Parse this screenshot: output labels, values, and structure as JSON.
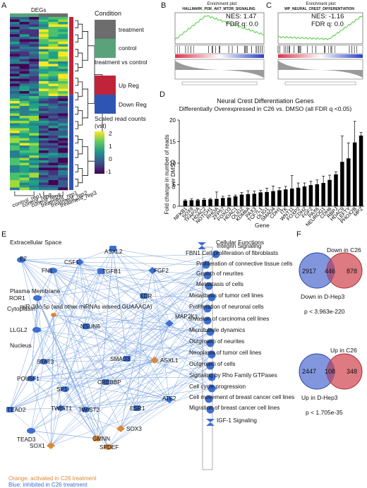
{
  "panels": {
    "A": "A",
    "B": "B",
    "C": "C",
    "D": "D",
    "E": "E",
    "F": "F"
  },
  "panelA": {
    "title": "DEGs",
    "legend": {
      "condition_title": "Condition",
      "treatment": "treatment",
      "control": "control",
      "tvc_title": "treatment vs control",
      "up": "Up Reg",
      "down": "Down Reg",
      "scale_title": "Scaled read counts (vst)",
      "ticks": [
        "2",
        "1",
        "0",
        "-1"
      ]
    },
    "samples": [
      "control_rep1",
      "control_rep2",
      "control_rep3",
      "treatment_rep1",
      "treatment_rep2",
      "treatment_rep3"
    ],
    "colors": {
      "treatment": "#6d6d6d",
      "control": "#5aa37a",
      "up": "#c0233a",
      "down": "#2f55b4"
    }
  },
  "panelB": {
    "title": "Enrichment plot:",
    "subtitle": "HALLMARK_PI3K_AKT_MTOR_SIGNALING",
    "nes": "NES: 1.47",
    "fdr": "FDR q: 0.0"
  },
  "panelC": {
    "title": "Enrichment plot:",
    "subtitle": "WP_NEURAL_CREST_DIFFERENTIATION",
    "nes": "NES: -1.16",
    "fdr": "FDR q: 0.0"
  },
  "chart_data": {
    "type": "bar",
    "title": "Neural Crest Differentiation Genes",
    "subtitle": "Differentially Overexpressed in C26 vs. DMSO (all FDR q <0.05)",
    "xlabel": "Gene",
    "ylabel": "Fold change in number of reads over DMSO",
    "ylim": [
      0,
      20
    ],
    "yticks": [
      0,
      5,
      10,
      15,
      20
    ],
    "categories": [
      "NFKB1",
      "SOX9",
      "TFAP2A",
      "HDAC2",
      "NOTCH1",
      "RHOA",
      "ZFP57",
      "FOXO3",
      "HDAC1",
      "OLIG2",
      "KDM6A",
      "PAX3",
      "TCF7L1",
      "OLIG1",
      "SMAD4",
      "CDH1",
      "ITK",
      "WNT11",
      "FOXP2",
      "CDH2",
      "FGF2",
      "PAX6",
      "NEUROG1",
      "CDH6",
      "RBPJ",
      "HDAC9",
      "LEFTY",
      "PHOX2B",
      "MPZ"
    ],
    "values": [
      1.3,
      1.4,
      1.4,
      1.5,
      1.6,
      1.7,
      1.9,
      2.0,
      2.3,
      2.7,
      2.8,
      2.9,
      3.2,
      3.3,
      3.5,
      3.7,
      3.9,
      4.1,
      4.3,
      4.6,
      4.9,
      5.1,
      5.4,
      6.1,
      7.4,
      10.3,
      11.1,
      14.8,
      16.4
    ],
    "errors": [
      0.2,
      0.3,
      0.2,
      0.3,
      0.2,
      1.6,
      0.4,
      0.5,
      0.3,
      0.5,
      0.8,
      0.6,
      0.5,
      0.9,
      1.2,
      0.6,
      0.7,
      3.0,
      1.1,
      0.8,
      0.9,
      1.0,
      1.6,
      1.1,
      0.6,
      6.0,
      3.6,
      4.9,
      0.7
    ]
  },
  "panelE": {
    "sections": {
      "extracellular": "Extracellular Space",
      "plasma": "Plasma Membrane",
      "cytoplasm": "Cytoplasm",
      "nucleus": "Nucleus",
      "functions": "Cellular Functions"
    },
    "genes": [
      {
        "id": "E2",
        "label": "E2",
        "type": "inh"
      },
      {
        "id": "ASXL2",
        "label": "ASXL2",
        "type": "inh"
      },
      {
        "id": "CSF1",
        "label": "CSF1",
        "type": "inh"
      },
      {
        "id": "FN1",
        "label": "FN1",
        "type": "inh"
      },
      {
        "id": "TGFB1",
        "label": "TGFB1",
        "type": "inh"
      },
      {
        "id": "FGF2",
        "label": "FGF2",
        "type": "inh"
      },
      {
        "id": "ROR1",
        "label": "ROR1",
        "type": "inh"
      },
      {
        "id": "KDR",
        "label": "KDR",
        "type": "inh"
      },
      {
        "id": "MIR30",
        "label": "miR-30c-5p (and other miRNAs w/seed GUAAACA)",
        "type": "act"
      },
      {
        "id": "LLGL2",
        "label": "LLGL2",
        "type": "inh"
      },
      {
        "id": "NSUN6",
        "label": "NSUN6",
        "type": "inh"
      },
      {
        "id": "MAP2K1",
        "label": "MAP2K1",
        "type": "inh"
      },
      {
        "id": "STAT3",
        "label": "STAT3",
        "type": "inh"
      },
      {
        "id": "SMAD3",
        "label": "SMAD3",
        "type": "inh"
      },
      {
        "id": "ASXL1",
        "label": "ASXL1",
        "type": "act"
      },
      {
        "id": "POU5F1",
        "label": "POU5F1",
        "type": "inh"
      },
      {
        "id": "CREBBP",
        "label": "CREBBP",
        "type": "inh"
      },
      {
        "id": "ATF2",
        "label": "ATF2",
        "type": "inh"
      },
      {
        "id": "SP1",
        "label": "SP1",
        "type": "inh"
      },
      {
        "id": "TEAD2",
        "label": "TEAD2",
        "type": "inh"
      },
      {
        "id": "TWIST1",
        "label": "TWIST1",
        "type": "inh"
      },
      {
        "id": "TWIST2",
        "label": "TWIST2",
        "type": "inh"
      },
      {
        "id": "ESR1",
        "label": "ESR1",
        "type": "inh"
      },
      {
        "id": "SOX3",
        "label": "SOX3",
        "type": "act"
      },
      {
        "id": "TEAD3",
        "label": "TEAD3",
        "type": "inh"
      },
      {
        "id": "GMNN",
        "label": "GMNN",
        "type": "act"
      },
      {
        "id": "SOX1",
        "label": "SOX1",
        "type": "act"
      },
      {
        "id": "SPDEF",
        "label": "SPDEF",
        "type": "act"
      }
    ],
    "functions": [
      "Integrin Signaling",
      "FBN1 Cell proliferation of fibroblasts",
      "Proliferation of connective tissue cells",
      "Growth of neurites",
      "Metastasis of cells",
      "Metastasis of tumor cell lines",
      "Proliferation of neuronal cells",
      "Invasion of carcinoma cell lines",
      "Microtubule dynamics",
      "Outgrowth of neurites",
      "Neoplasia of tumor cell lines",
      "Outgrowth of cells",
      "Signaling by Rho Family GTPases",
      "Cell cycle progression",
      "Cell movement of breast cancer cell lines",
      "Migration of breast cancer cell lines",
      "IGF-1 Signaling"
    ],
    "legend_orange": "Orange: activated in C26 treatment",
    "legend_blue": "Blue: inhibited in C26 treatment",
    "colors": {
      "inh": "#3d6fd1",
      "act": "#d9893a",
      "edge": "#7ea5e0"
    }
  },
  "panelF": {
    "top": {
      "label_right": "Down in C26",
      "label_left": "Down in D-Hep3",
      "left": "2917",
      "overlap": "446",
      "right": "878",
      "p": "p < 3.963e-220"
    },
    "bottom": {
      "label_right": "Up in C26",
      "label_left": "Up in D-Hep3",
      "left": "2447",
      "overlap": "108",
      "right": "348",
      "p": "p < 1.705e-35"
    },
    "colors": {
      "blue": "#6b84d6",
      "red": "#d8636b"
    }
  }
}
